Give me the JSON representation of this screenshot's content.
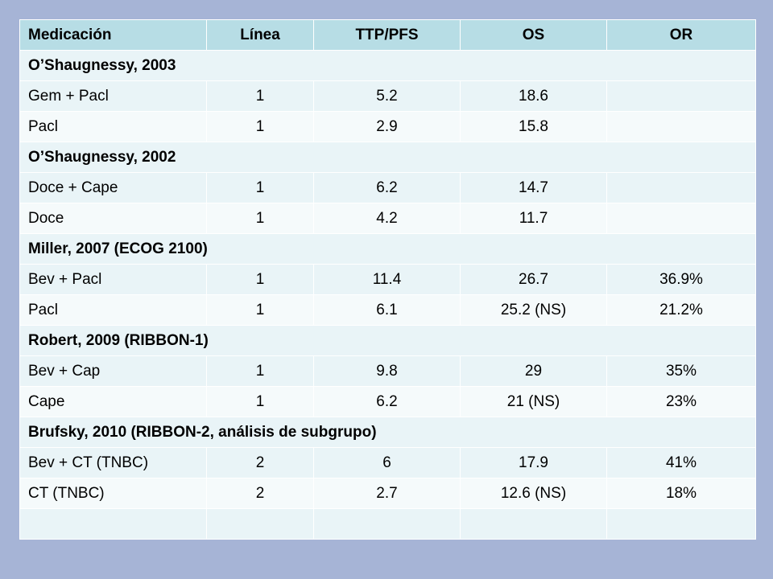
{
  "headers": [
    "Medicación",
    "Línea",
    "TTP/PFS",
    "OS",
    "OR"
  ],
  "rows": [
    {
      "type": "group",
      "label": "O’Shaugnessy, 2003"
    },
    {
      "type": "data",
      "cells": [
        "Gem + Pacl",
        "1",
        "5.2",
        "18.6",
        ""
      ]
    },
    {
      "type": "data",
      "cells": [
        "Pacl",
        "1",
        "2.9",
        "15.8",
        ""
      ]
    },
    {
      "type": "group",
      "label": "O’Shaugnessy, 2002"
    },
    {
      "type": "data",
      "cells": [
        "Doce + Cape",
        "1",
        "6.2",
        "14.7",
        ""
      ]
    },
    {
      "type": "data",
      "cells": [
        "Doce",
        "1",
        "4.2",
        "11.7",
        ""
      ]
    },
    {
      "type": "group",
      "label": "Miller, 2007 (ECOG 2100)"
    },
    {
      "type": "data",
      "cells": [
        "Bev + Pacl",
        "1",
        "11.4",
        "26.7",
        "36.9%"
      ]
    },
    {
      "type": "data",
      "cells": [
        "Pacl",
        "1",
        "6.1",
        "25.2 (NS)",
        "21.2%"
      ]
    },
    {
      "type": "group",
      "label": "Robert, 2009 (RIBBON-1)"
    },
    {
      "type": "data",
      "cells": [
        "Bev + Cap",
        "1",
        "9.8",
        "29",
        "35%"
      ]
    },
    {
      "type": "data",
      "cells": [
        "Cape",
        "1",
        "6.2",
        "21 (NS)",
        "23%"
      ]
    },
    {
      "type": "group",
      "label": "Brufsky, 2010 (RIBBON-2, análisis de subgrupo)"
    },
    {
      "type": "data",
      "cells": [
        "Bev + CT (TNBC)",
        "2",
        "6",
        "17.9",
        "41%"
      ]
    },
    {
      "type": "data",
      "cells": [
        "CT (TNBC)",
        "2",
        "2.7",
        "12.6 (NS)",
        "18%"
      ]
    },
    {
      "type": "data",
      "cells": [
        "",
        "",
        "",
        "",
        ""
      ]
    }
  ]
}
